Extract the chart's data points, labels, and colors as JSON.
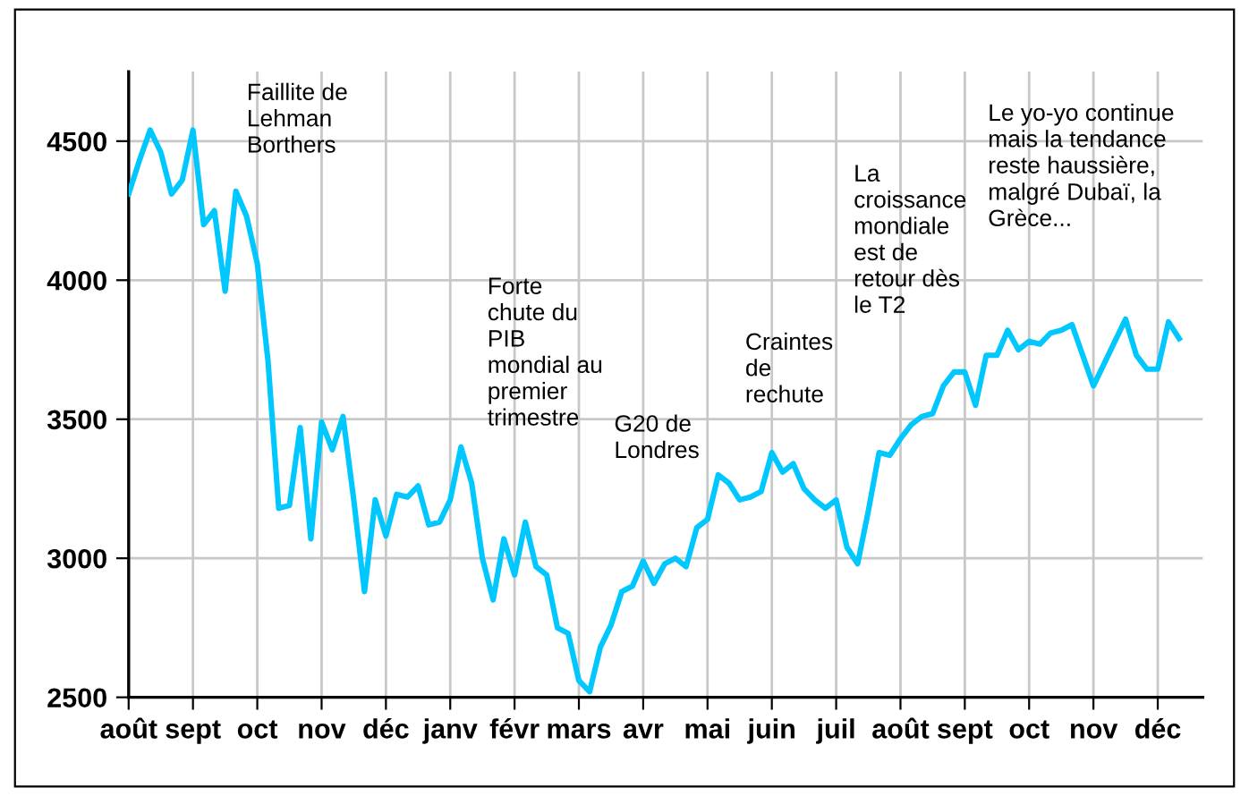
{
  "chart_data": {
    "type": "line",
    "categories": [
      "août",
      null,
      null,
      null,
      null,
      null,
      "sept",
      null,
      null,
      null,
      null,
      null,
      "oct",
      null,
      null,
      null,
      null,
      null,
      "nov",
      null,
      null,
      null,
      null,
      null,
      "déc",
      null,
      null,
      null,
      null,
      null,
      "janv",
      null,
      null,
      null,
      null,
      null,
      "févr",
      null,
      null,
      null,
      null,
      null,
      "mars",
      null,
      null,
      null,
      null,
      null,
      "avr",
      null,
      null,
      null,
      null,
      null,
      "mai",
      null,
      null,
      null,
      null,
      null,
      "juin",
      null,
      null,
      null,
      null,
      null,
      "juil",
      null,
      null,
      null,
      null,
      null,
      "août",
      null,
      null,
      null,
      null,
      null,
      "sept",
      null,
      null,
      null,
      null,
      null,
      "oct",
      null,
      null,
      null,
      null,
      null,
      "nov",
      null,
      null,
      null,
      null,
      null,
      "déc",
      null,
      null
    ],
    "series": [
      {
        "color": "#00c8ff",
        "values": [
          4310,
          4430,
          4540,
          4460,
          4310,
          4360,
          4540,
          4200,
          4250,
          3960,
          4320,
          4230,
          4060,
          3710,
          3180,
          3190,
          3470,
          3070,
          3490,
          3390,
          3510,
          3210,
          2880,
          3210,
          3080,
          3230,
          3220,
          3260,
          3120,
          3130,
          3210,
          3400,
          3270,
          3000,
          2850,
          3070,
          2940,
          3130,
          2970,
          2940,
          2750,
          2730,
          2560,
          2520,
          2680,
          2760,
          2880,
          2900,
          2990,
          2910,
          2980,
          3000,
          2970,
          3110,
          3140,
          3300,
          3270,
          3210,
          3220,
          3240,
          3380,
          3310,
          3340,
          3250,
          3210,
          3180,
          3210,
          3040,
          2980,
          3170,
          3380,
          3370,
          3430,
          3480,
          3510,
          3520,
          3620,
          3670,
          3670,
          3550,
          3730,
          3730,
          3820,
          3750,
          3780,
          3770,
          3810,
          3820,
          3840,
          3730,
          3620,
          3700,
          3780,
          3860,
          3730,
          3680,
          3680,
          3850,
          3790
        ]
      }
    ],
    "ylim": [
      2500,
      4750
    ],
    "yticks": [
      2500,
      3000,
      3500,
      4000,
      4500
    ],
    "grid": true,
    "legend": false,
    "marker": "none",
    "line_style": "solid",
    "annotations": [
      "Faillite de\nLehman\nBorthers",
      "Forte\nchute du\nPIB\nmondial au\npremier\ntrimestre",
      "G20 de\nLondres",
      "Craintes\nde\nrechute",
      "La\ncroissance\nmondiale\nest de\nretour dès\nle T2",
      "Le yo-yo continue\nmais la tendance\nreste haussière,\nmalgré Dubaï, la\nGrèce..."
    ]
  }
}
